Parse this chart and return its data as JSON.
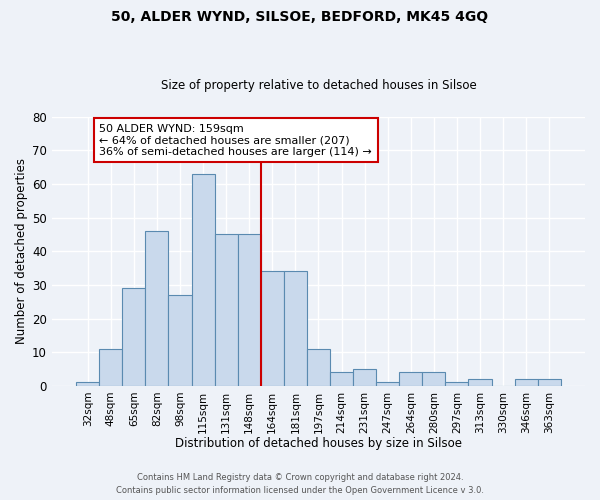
{
  "title": "50, ALDER WYND, SILSOE, BEDFORD, MK45 4GQ",
  "subtitle": "Size of property relative to detached houses in Silsoe",
  "xlabel": "Distribution of detached houses by size in Silsoe",
  "ylabel": "Number of detached properties",
  "categories": [
    "32sqm",
    "48sqm",
    "65sqm",
    "82sqm",
    "98sqm",
    "115sqm",
    "131sqm",
    "148sqm",
    "164sqm",
    "181sqm",
    "197sqm",
    "214sqm",
    "231sqm",
    "247sqm",
    "264sqm",
    "280sqm",
    "297sqm",
    "313sqm",
    "330sqm",
    "346sqm",
    "363sqm"
  ],
  "values": [
    1,
    11,
    29,
    46,
    27,
    63,
    45,
    45,
    34,
    34,
    11,
    4,
    5,
    1,
    4,
    4,
    1,
    2,
    0,
    2,
    2
  ],
  "bar_color": "#c9d9ec",
  "bar_edge_color": "#5a8ab0",
  "vline_x_index": 8,
  "vline_color": "#cc0000",
  "annotation_text": "50 ALDER WYND: 159sqm\n← 64% of detached houses are smaller (207)\n36% of semi-detached houses are larger (114) →",
  "annotation_box_color": "white",
  "annotation_box_edge_color": "#cc0000",
  "footer_text1": "Contains HM Land Registry data © Crown copyright and database right 2024.",
  "footer_text2": "Contains public sector information licensed under the Open Government Licence v 3.0.",
  "ylim": [
    0,
    80
  ],
  "yticks": [
    0,
    10,
    20,
    30,
    40,
    50,
    60,
    70,
    80
  ],
  "background_color": "#eef2f8",
  "grid_color": "white"
}
